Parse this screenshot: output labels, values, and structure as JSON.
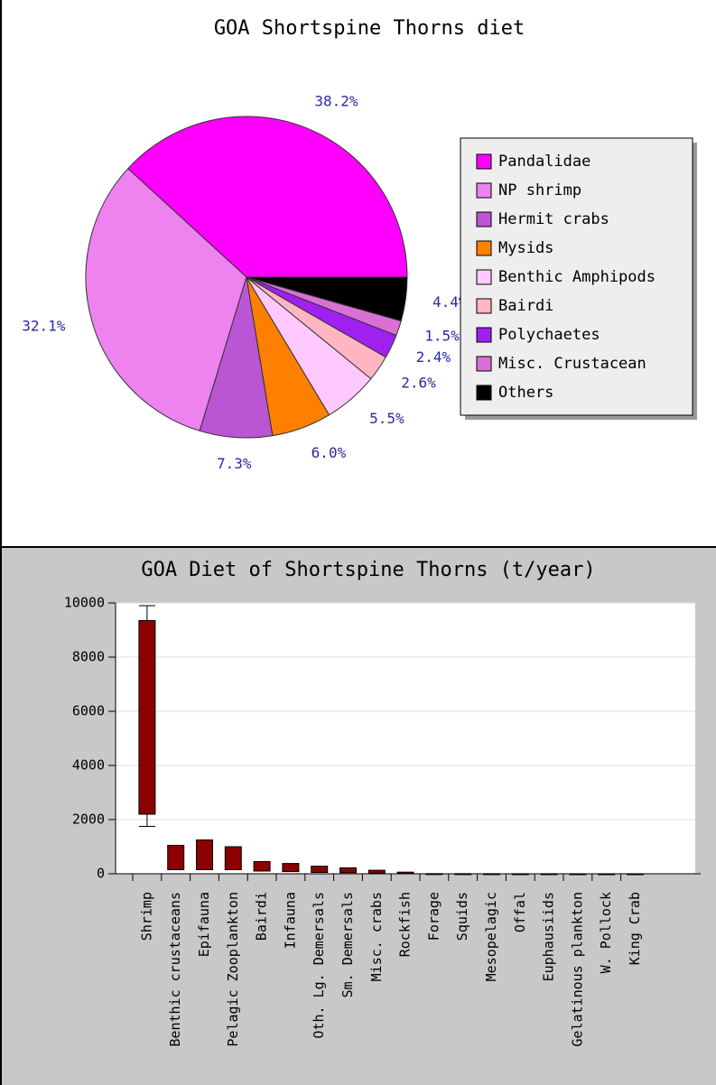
{
  "chart_data": [
    {
      "type": "pie",
      "title": "GOA Shortspine Thorns diet",
      "categories": [
        "Pandalidae",
        "NP shrimp",
        "Hermit crabs",
        "Mysids",
        "Benthic Amphipods",
        "Bairdi",
        "Polychaetes",
        "Misc. Crustacean",
        "Others"
      ],
      "values": [
        38.2,
        32.1,
        7.3,
        6.0,
        5.5,
        2.6,
        2.4,
        1.5,
        4.4
      ],
      "value_labels": [
        "38.2%",
        "32.1%",
        "7.3%",
        "6.0%",
        "5.5%",
        "2.6%",
        "2.4%",
        "1.5%",
        "4.4%"
      ],
      "colors": [
        "#ff00ff",
        "#ee82ee",
        "#ba55d3",
        "#ff8000",
        "#ffc8ff",
        "#ffb6c1",
        "#a020f0",
        "#da70d6",
        "#000000"
      ],
      "legend": "right"
    },
    {
      "type": "floating-bar",
      "title": "GOA Diet of Shortspine Thorns (t/year)",
      "categories": [
        "Shrimp",
        "Benthic crustaceans",
        "Epifauna",
        "Pelagic Zooplankton",
        "Bairdi",
        "Infauna",
        "Oth. Lg. Demersals",
        "Sm. Demersals",
        "Misc. crabs",
        "Rockfish",
        "Forage",
        "Squids",
        "Mesopelagic",
        "Offal",
        "Euphausiids",
        "Gelatinous plankton",
        "W. Pollock",
        "King Crab"
      ],
      "low": [
        2200,
        150,
        150,
        150,
        100,
        80,
        50,
        40,
        20,
        10,
        0,
        0,
        0,
        0,
        0,
        0,
        0,
        0
      ],
      "high": [
        9350,
        1050,
        1250,
        1000,
        450,
        380,
        280,
        220,
        130,
        60,
        5,
        4,
        3,
        2,
        2,
        1,
        1,
        1
      ],
      "error_low": [
        1750,
        null,
        null,
        null,
        null,
        null,
        null,
        null,
        null,
        null,
        null,
        null,
        null,
        null,
        null,
        null,
        null,
        null
      ],
      "error_high": [
        9900,
        null,
        null,
        null,
        null,
        null,
        null,
        null,
        null,
        null,
        null,
        null,
        null,
        null,
        null,
        null,
        null,
        null
      ],
      "color": "#8b0000",
      "ylim": [
        0,
        10000
      ],
      "yticks": [
        0,
        2000,
        4000,
        6000,
        8000,
        10000
      ],
      "grid": true
    }
  ]
}
